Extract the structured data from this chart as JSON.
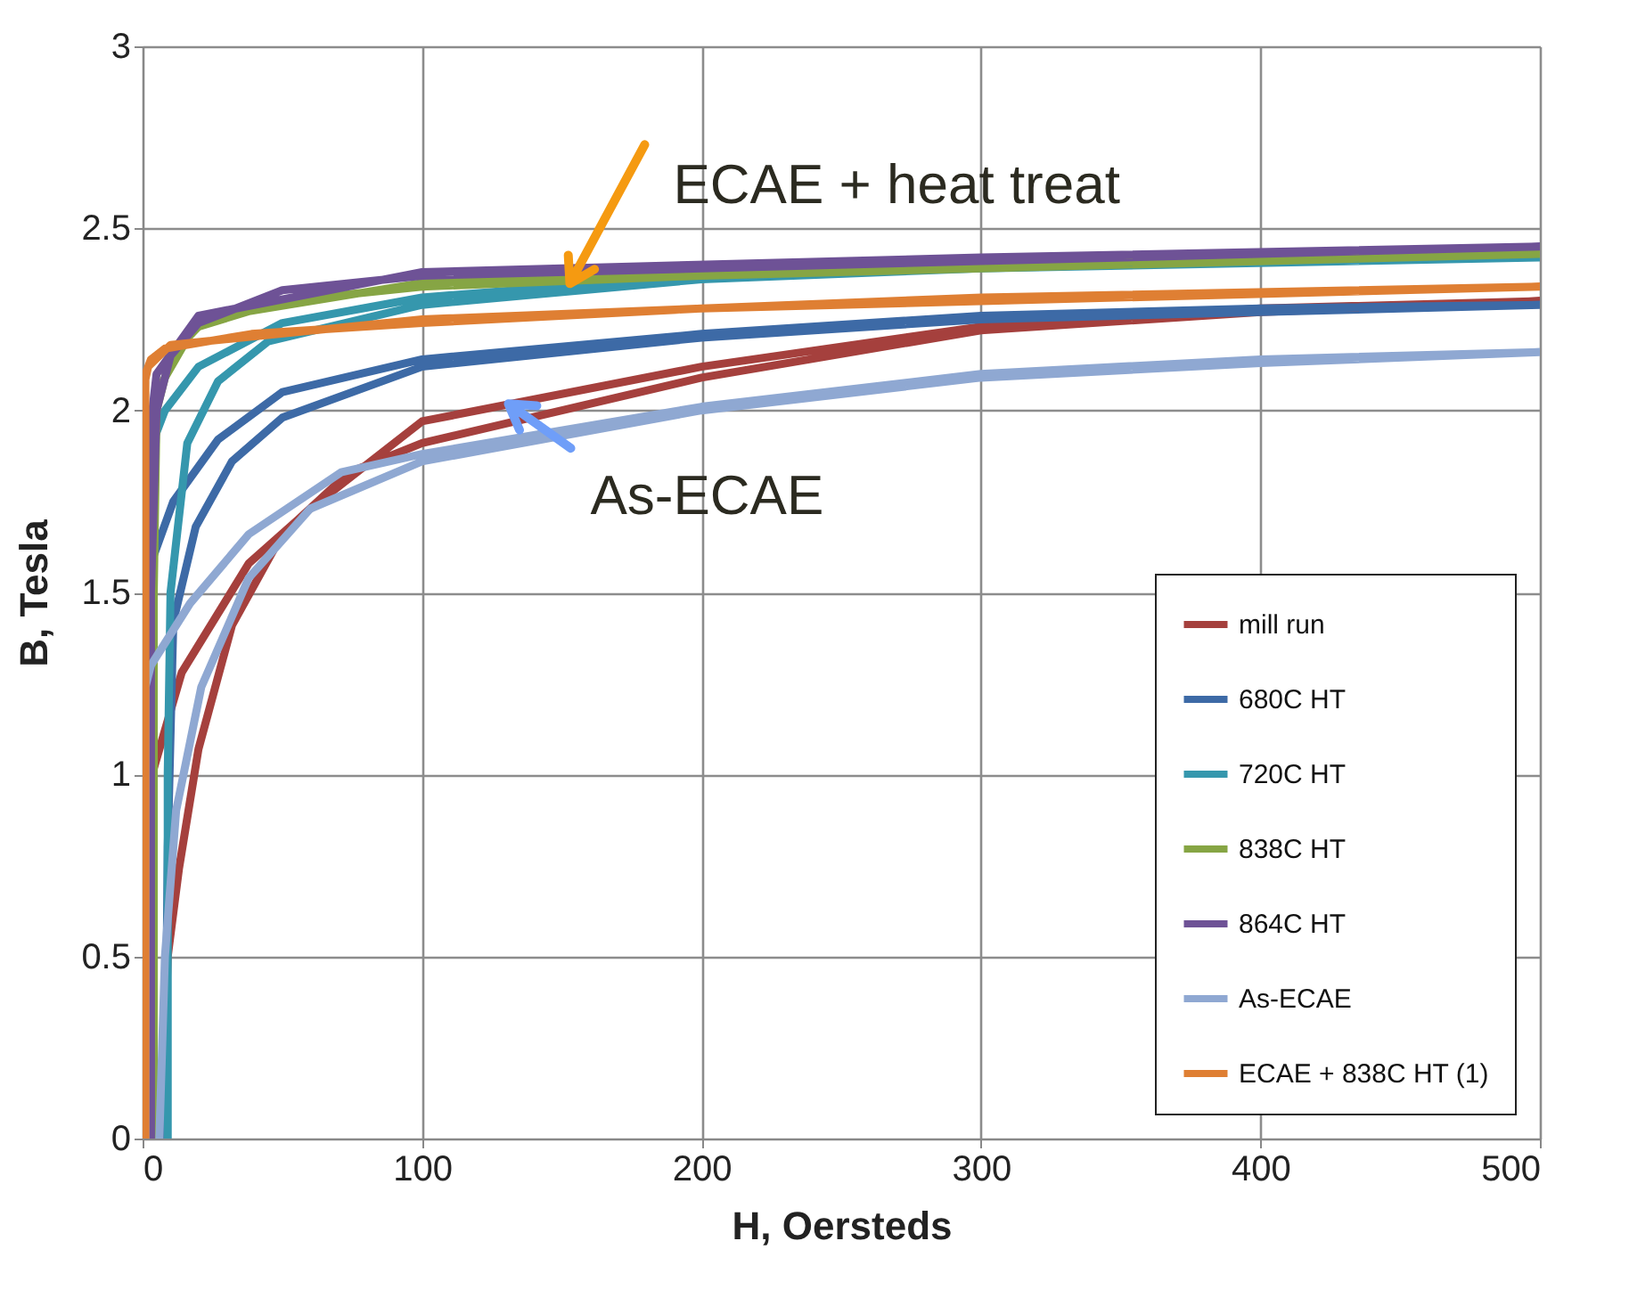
{
  "chart_data": {
    "type": "line",
    "xlabel": "H, Oersteds",
    "ylabel": "B, Tesla",
    "xlim": [
      0,
      500
    ],
    "xticks": [
      0,
      100,
      200,
      300,
      400,
      500
    ],
    "ylim": [
      0,
      3
    ],
    "yticks": [
      0,
      0.5,
      1,
      1.5,
      2,
      2.5,
      3
    ],
    "grid": true,
    "legend": "bottom right",
    "series": [
      {
        "name": "mill run",
        "color": "#a5403d",
        "x": [
          7,
          9,
          13,
          20,
          32,
          50,
          74,
          100,
          200,
          300,
          400,
          500,
          400,
          300,
          200,
          100,
          60,
          38,
          14,
          3,
          3
        ],
        "values": [
          0,
          0.5,
          0.74,
          1.07,
          1.41,
          1.66,
          1.83,
          1.91,
          2.09,
          2.22,
          2.27,
          2.3,
          2.28,
          2.23,
          2.12,
          1.97,
          1.73,
          1.58,
          1.28,
          0.99,
          0
        ]
      },
      {
        "name": "680C HT",
        "color": "#3d6aa6",
        "x": [
          8,
          9,
          11,
          19,
          32,
          50,
          100,
          200,
          300,
          400,
          500,
          400,
          300,
          200,
          100,
          50,
          27,
          11,
          3,
          2
        ],
        "values": [
          0,
          0.8,
          1.42,
          1.68,
          1.86,
          1.98,
          2.12,
          2.2,
          2.25,
          2.27,
          2.29,
          2.28,
          2.26,
          2.21,
          2.14,
          2.05,
          1.92,
          1.75,
          1.58,
          0
        ]
      },
      {
        "name": "720C HT",
        "color": "#3597ad",
        "x": [
          9,
          9,
          10,
          16,
          27,
          45,
          100,
          200,
          300,
          500,
          300,
          200,
          100,
          50,
          20,
          8,
          3,
          2,
          2
        ],
        "values": [
          0,
          1,
          1.5,
          1.91,
          2.08,
          2.19,
          2.29,
          2.36,
          2.39,
          2.42,
          2.4,
          2.37,
          2.31,
          2.24,
          2.12,
          2,
          1.9,
          1.5,
          0
        ]
      },
      {
        "name": "838C HT",
        "color": "#86a544",
        "x": [
          4,
          4,
          5,
          10,
          20,
          50,
          100,
          200,
          300,
          500,
          300,
          100,
          20,
          5,
          3,
          2
        ],
        "values": [
          0,
          1.5,
          2,
          2.15,
          2.23,
          2.3,
          2.34,
          2.37,
          2.39,
          2.43,
          2.4,
          2.35,
          2.25,
          2.05,
          1.9,
          0
        ]
      },
      {
        "name": "864C HT",
        "color": "#6e5296",
        "x": [
          3,
          3,
          5,
          10,
          20,
          50,
          100,
          200,
          300,
          500,
          300,
          100,
          20,
          5,
          2,
          2
        ],
        "values": [
          0,
          1.5,
          2,
          2.15,
          2.24,
          2.33,
          2.37,
          2.39,
          2.41,
          2.45,
          2.42,
          2.38,
          2.26,
          2.1,
          1.9,
          0
        ]
      },
      {
        "name": "As-ECAE",
        "color": "#8fa8d2",
        "x": [
          6,
          8,
          12,
          21,
          38,
          60,
          100,
          200,
          300,
          400,
          500,
          400,
          300,
          200,
          100,
          71,
          38,
          17,
          3,
          1,
          1
        ],
        "values": [
          0,
          0.5,
          0.9,
          1.24,
          1.54,
          1.73,
          1.86,
          2,
          2.09,
          2.13,
          2.16,
          2.14,
          2.1,
          2.01,
          1.88,
          1.83,
          1.66,
          1.47,
          1.3,
          1.24,
          0
        ]
      },
      {
        "name": "ECAE + 838C HT (1)",
        "color": "#df7f33",
        "x": [
          1,
          1,
          3,
          8,
          39,
          100,
          200,
          300,
          500,
          300,
          100,
          10,
          2,
          0,
          0
        ],
        "values": [
          0,
          2.1,
          2.14,
          2.17,
          2.21,
          2.24,
          2.28,
          2.3,
          2.34,
          2.31,
          2.25,
          2.18,
          2.12,
          2.05,
          0
        ]
      }
    ],
    "annotations": [
      {
        "text": "ECAE + heat treat",
        "x": 158,
        "y": 2.27
      },
      {
        "text": "As-ECAE",
        "x": 136,
        "y": 1.94
      }
    ]
  }
}
